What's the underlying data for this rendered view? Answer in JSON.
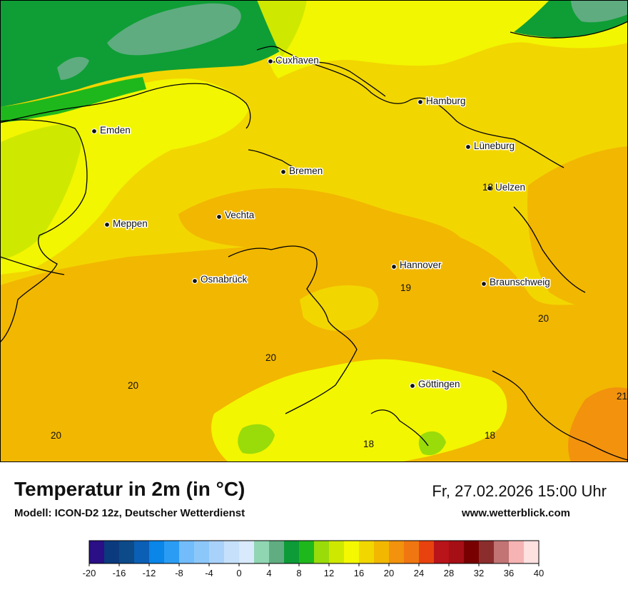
{
  "map": {
    "cities": [
      {
        "name": "Cuxhaven"
      },
      {
        "name": "Hamburg"
      },
      {
        "name": "Emden"
      },
      {
        "name": "Lüneburg"
      },
      {
        "name": "Bremen"
      },
      {
        "name": "Uelzen"
      },
      {
        "name": "Vechta"
      },
      {
        "name": "Meppen"
      },
      {
        "name": "Hannover"
      },
      {
        "name": "Osnabrück"
      },
      {
        "name": "Braunschweig"
      },
      {
        "name": "Göttingen"
      }
    ],
    "values": [
      "18",
      "19",
      "20",
      "20",
      "20",
      "20",
      "20",
      "21",
      "18",
      "18"
    ]
  },
  "footer": {
    "title": "Temperatur in 2m (in °C)",
    "model": "Modell: ICON-D2 12z, Deutscher Wetterdienst",
    "datetime": "Fr, 27.02.2026 15:00 Uhr",
    "website": "www.wetterblick.com"
  },
  "legend": {
    "ticks": [
      "-20",
      "-16",
      "-12",
      "-8",
      "-4",
      "0",
      "4",
      "8",
      "12",
      "16",
      "20",
      "24",
      "28",
      "32",
      "36",
      "40"
    ],
    "colors": [
      "#2a0f86",
      "#0b3a7e",
      "#0c4a8a",
      "#0b5fb4",
      "#0a85e8",
      "#2b9cf4",
      "#72bcfb",
      "#8cc7fa",
      "#a9d2fb",
      "#c6e0fb",
      "#d8eafc",
      "#90d6b2",
      "#5fad80",
      "#0d9b37",
      "#1fb81c",
      "#9adb0a",
      "#cfe800",
      "#f4f800",
      "#f2d600",
      "#f2b700",
      "#f2920d",
      "#f07612",
      "#e8420e",
      "#b8141a",
      "#a50f15",
      "#780000",
      "#8c2d2d",
      "#c27373",
      "#f5b3b3",
      "#fde0e0"
    ]
  },
  "colors": {
    "sea_green": "#0e9e35",
    "mudflat": "#5fac80",
    "yellow": "#f2f600",
    "lime": "#cfe800",
    "gold": "#f2d600",
    "orange": "#f2b700",
    "deep_orange": "#f2920d",
    "border": "#000000"
  }
}
